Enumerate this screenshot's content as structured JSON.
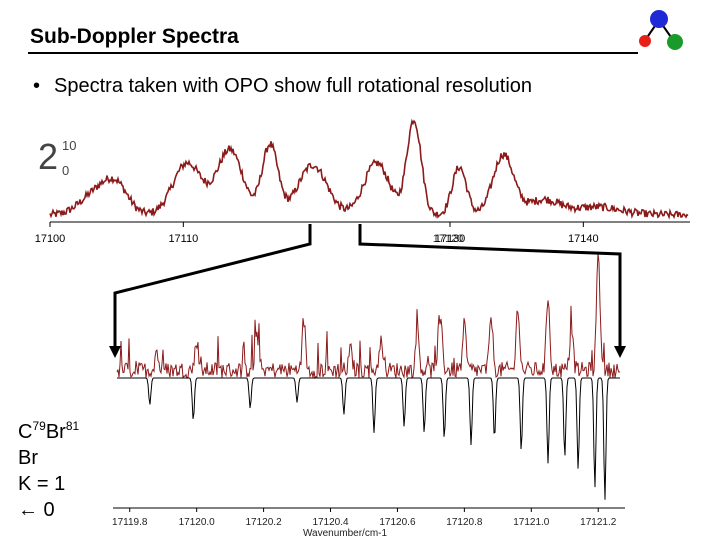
{
  "slide": {
    "title": "Sub-Doppler Spectra",
    "bullet": "Spectra taken with OPO show full rotational resolution",
    "bullet_marker": "•",
    "band_label": {
      "main": "2",
      "superscript": "10",
      "subscript": "0"
    },
    "molecule_label": {
      "line1_prefix": "C",
      "iso1": "79",
      "line1_mid": "Br",
      "iso2": "81",
      "line2": "Br",
      "line3": "K = 1",
      "line4": "← 0"
    },
    "logo_colors": [
      "#1f2ad6",
      "#e8201a",
      "#1a9a2a"
    ]
  },
  "chart_data": [
    {
      "type": "line",
      "name": "overview",
      "series_color": "#8b1a1a",
      "xlim": [
        17100,
        17148
      ],
      "x_ticks": [
        17100,
        17110,
        17130,
        17140
      ],
      "x_tick_labels": [
        "17100",
        "17110",
        "17130",
        "17140"
      ],
      "overlap_label": "17120",
      "grid": false,
      "peaks_x": [
        17103.5,
        17105,
        17110.3,
        17113.5,
        17116.5,
        17119.7,
        17124.5,
        17127.3,
        17130.7,
        17134
      ]
    },
    {
      "type": "line",
      "name": "zoom",
      "series": [
        {
          "name": "",
          "color": "#8b1a1a"
        },
        {
          "name": "",
          "color": "#000000"
        }
      ],
      "xlim": [
        17119.75,
        17121.28
      ],
      "x_ticks": [
        17119.8,
        17120.0,
        17120.2,
        17120.4,
        17120.6,
        17120.8,
        17121.0,
        17121.2
      ],
      "x_tick_labels": [
        "17119.8",
        "17120.0",
        "17120.2",
        "17120.4",
        "17120.6",
        "17120.8",
        "17121.0",
        "17121.2"
      ],
      "xlabel": "Wavenumber/cm-1",
      "grid": false,
      "observed_peaks_x": [
        17119.88,
        17120.0,
        17120.18,
        17120.32,
        17120.46,
        17120.55,
        17120.66,
        17120.73,
        17120.8,
        17120.88,
        17120.96,
        17121.05,
        17121.12,
        17121.2
      ],
      "simulated_lines": [
        {
          "x": 17119.86,
          "depth": 0.22
        },
        {
          "x": 17119.99,
          "depth": 0.35
        },
        {
          "x": 17120.16,
          "depth": 0.25
        },
        {
          "x": 17120.3,
          "depth": 0.2
        },
        {
          "x": 17120.44,
          "depth": 0.3
        },
        {
          "x": 17120.53,
          "depth": 0.45
        },
        {
          "x": 17120.62,
          "depth": 0.4
        },
        {
          "x": 17120.68,
          "depth": 0.45
        },
        {
          "x": 17120.74,
          "depth": 0.5
        },
        {
          "x": 17120.82,
          "depth": 0.55
        },
        {
          "x": 17120.89,
          "depth": 0.5
        },
        {
          "x": 17120.97,
          "depth": 0.6
        },
        {
          "x": 17121.05,
          "depth": 0.7
        },
        {
          "x": 17121.1,
          "depth": 0.65
        },
        {
          "x": 17121.14,
          "depth": 0.75
        },
        {
          "x": 17121.19,
          "depth": 0.9
        },
        {
          "x": 17121.22,
          "depth": 1.0
        }
      ]
    }
  ]
}
